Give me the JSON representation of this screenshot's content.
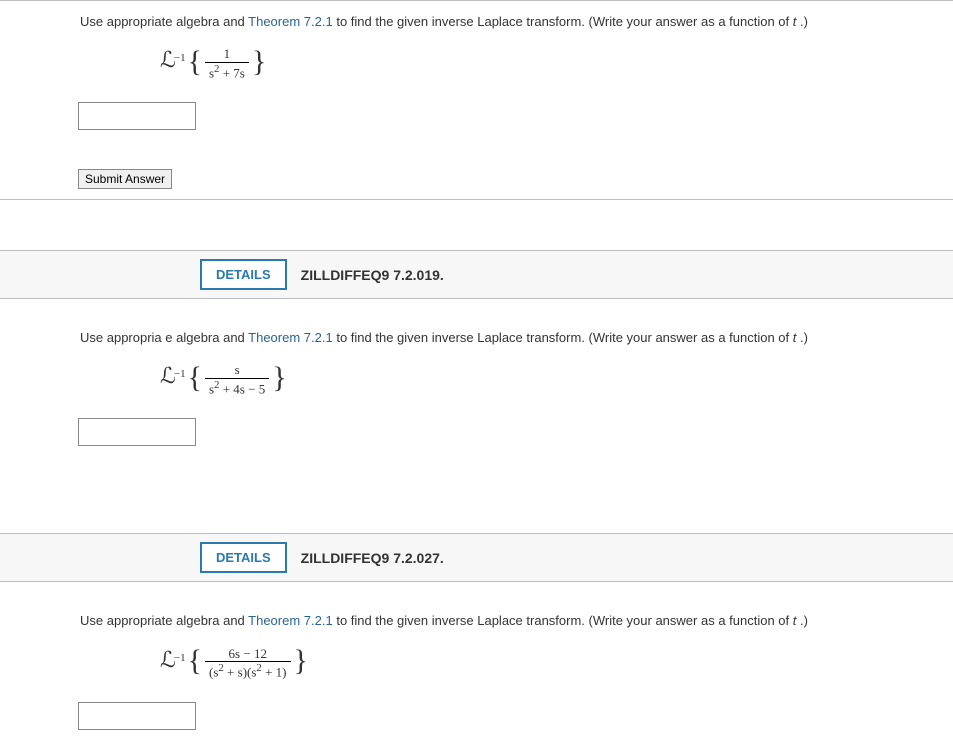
{
  "q1": {
    "prompt_pre": "Use appropriate algebra and ",
    "theorem": "Theorem 7.2.1",
    "prompt_post": " to find the given inverse Laplace transform. (Write your answer as a function of ",
    "var": "t",
    "prompt_end": ".)",
    "op": "ℒ",
    "exp": "−1",
    "num": "1",
    "den_html": "s<sup>2</sup> + 7s",
    "submit_label": "Submit Answer"
  },
  "q2": {
    "details_label": "DETAILS",
    "ref": "ZILLDIFFEQ9 7.2.019.",
    "prompt_pre": "Use appropria e algebra and ",
    "theorem": "Theorem 7.2.1",
    "prompt_post": " to find the given inverse Laplace transform. (Write your answer as a function of ",
    "var": "t",
    "prompt_end": ".)",
    "op": "ℒ",
    "exp": "−1",
    "num": "s",
    "den_html": "s<sup>2</sup> + 4s − 5"
  },
  "q3": {
    "details_label": "DETAILS",
    "ref": "ZILLDIFFEQ9 7.2.027.",
    "prompt_pre": "Use appropriate algebra and ",
    "theorem": "Theorem 7.2.1",
    "prompt_post": " to find the given inverse Laplace transform. (Write your answer as a function of ",
    "var": "t",
    "prompt_end": ".)",
    "op": "ℒ",
    "exp": "−1",
    "num": "6s − 12",
    "den_html": "(s<sup>2</sup> + s)(s<sup>2</sup> + 1)"
  },
  "colors": {
    "link": "#2a6496",
    "details_border": "#2a7aaf",
    "border": "#c0c0c0",
    "text": "#333333",
    "bg": "#ffffff"
  }
}
